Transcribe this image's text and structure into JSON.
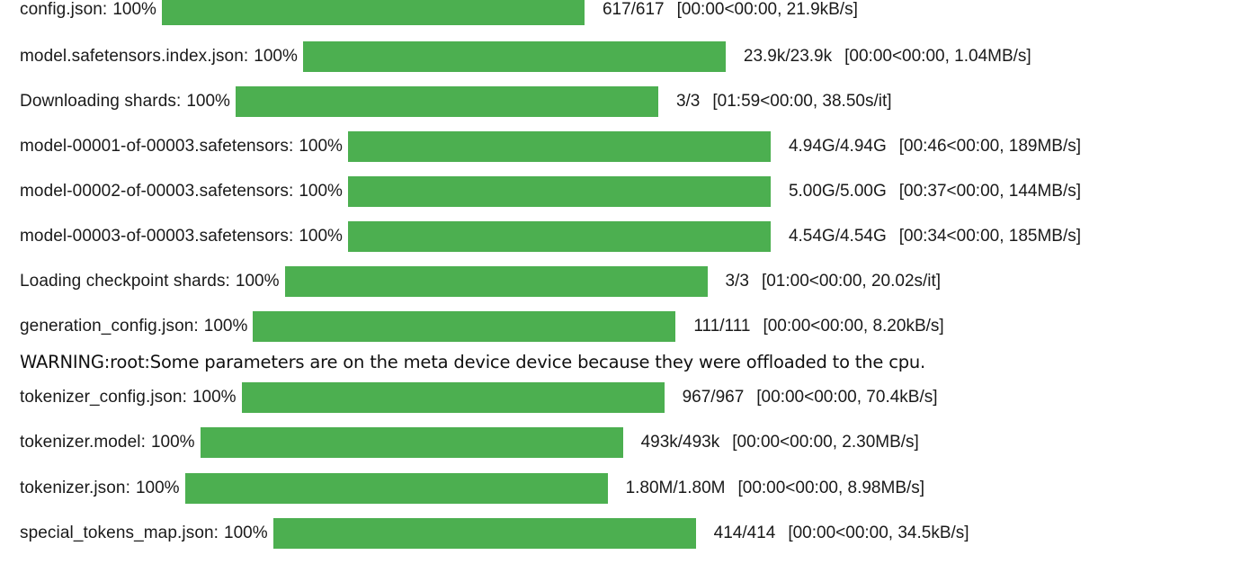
{
  "colors": {
    "bar_fill": "#4caf50",
    "text": "#1a1a1a"
  },
  "rows": [
    {
      "label": "config.json:",
      "percent": "100%",
      "progress": 1.0,
      "stats": "617/617",
      "timing": "[00:00<00:00,  21.9kB/s]"
    },
    {
      "label": "model.safetensors.index.json:",
      "percent": "100%",
      "progress": 1.0,
      "stats": "23.9k/23.9k",
      "timing": "[00:00<00:00,  1.04MB/s]"
    },
    {
      "label": "Downloading  shards:",
      "percent": "100%",
      "progress": 1.0,
      "stats": "3/3",
      "timing": "[01:59<00:00,  38.50s/it]"
    },
    {
      "label": "model-00001-of-00003.safetensors:",
      "percent": "100%",
      "progress": 1.0,
      "stats": "4.94G/4.94G",
      "timing": "[00:46<00:00,  189MB/s]"
    },
    {
      "label": "model-00002-of-00003.safetensors:",
      "percent": "100%",
      "progress": 1.0,
      "stats": "5.00G/5.00G",
      "timing": "[00:37<00:00,  144MB/s]"
    },
    {
      "label": "model-00003-of-00003.safetensors:",
      "percent": "100%",
      "progress": 1.0,
      "stats": "4.54G/4.54G",
      "timing": "[00:34<00:00,  185MB/s]"
    },
    {
      "label": "Loading  checkpoint  shards:",
      "percent": "100%",
      "progress": 1.0,
      "stats": "3/3",
      "timing": "[01:00<00:00,  20.02s/it]"
    },
    {
      "label": "generation_config.json:",
      "percent": "100%",
      "progress": 1.0,
      "stats": "111/111",
      "timing": "[00:00<00:00,  8.20kB/s]"
    },
    {
      "label": "tokenizer_config.json:",
      "percent": "100%",
      "progress": 1.0,
      "stats": "967/967",
      "timing": "[00:00<00:00,  70.4kB/s]"
    },
    {
      "label": "tokenizer.model:",
      "percent": "100%",
      "progress": 1.0,
      "stats": "493k/493k",
      "timing": "[00:00<00:00,  2.30MB/s]"
    },
    {
      "label": "tokenizer.json:",
      "percent": "100%",
      "progress": 1.0,
      "stats": "1.80M/1.80M",
      "timing": "[00:00<00:00,  8.98MB/s]"
    },
    {
      "label": "special_tokens_map.json:",
      "percent": "100%",
      "progress": 1.0,
      "stats": "414/414",
      "timing": "[00:00<00:00,  34.5kB/s]"
    }
  ],
  "warning": "WARNING:root:Some parameters are on the meta device device because they were offloaded to the cpu."
}
